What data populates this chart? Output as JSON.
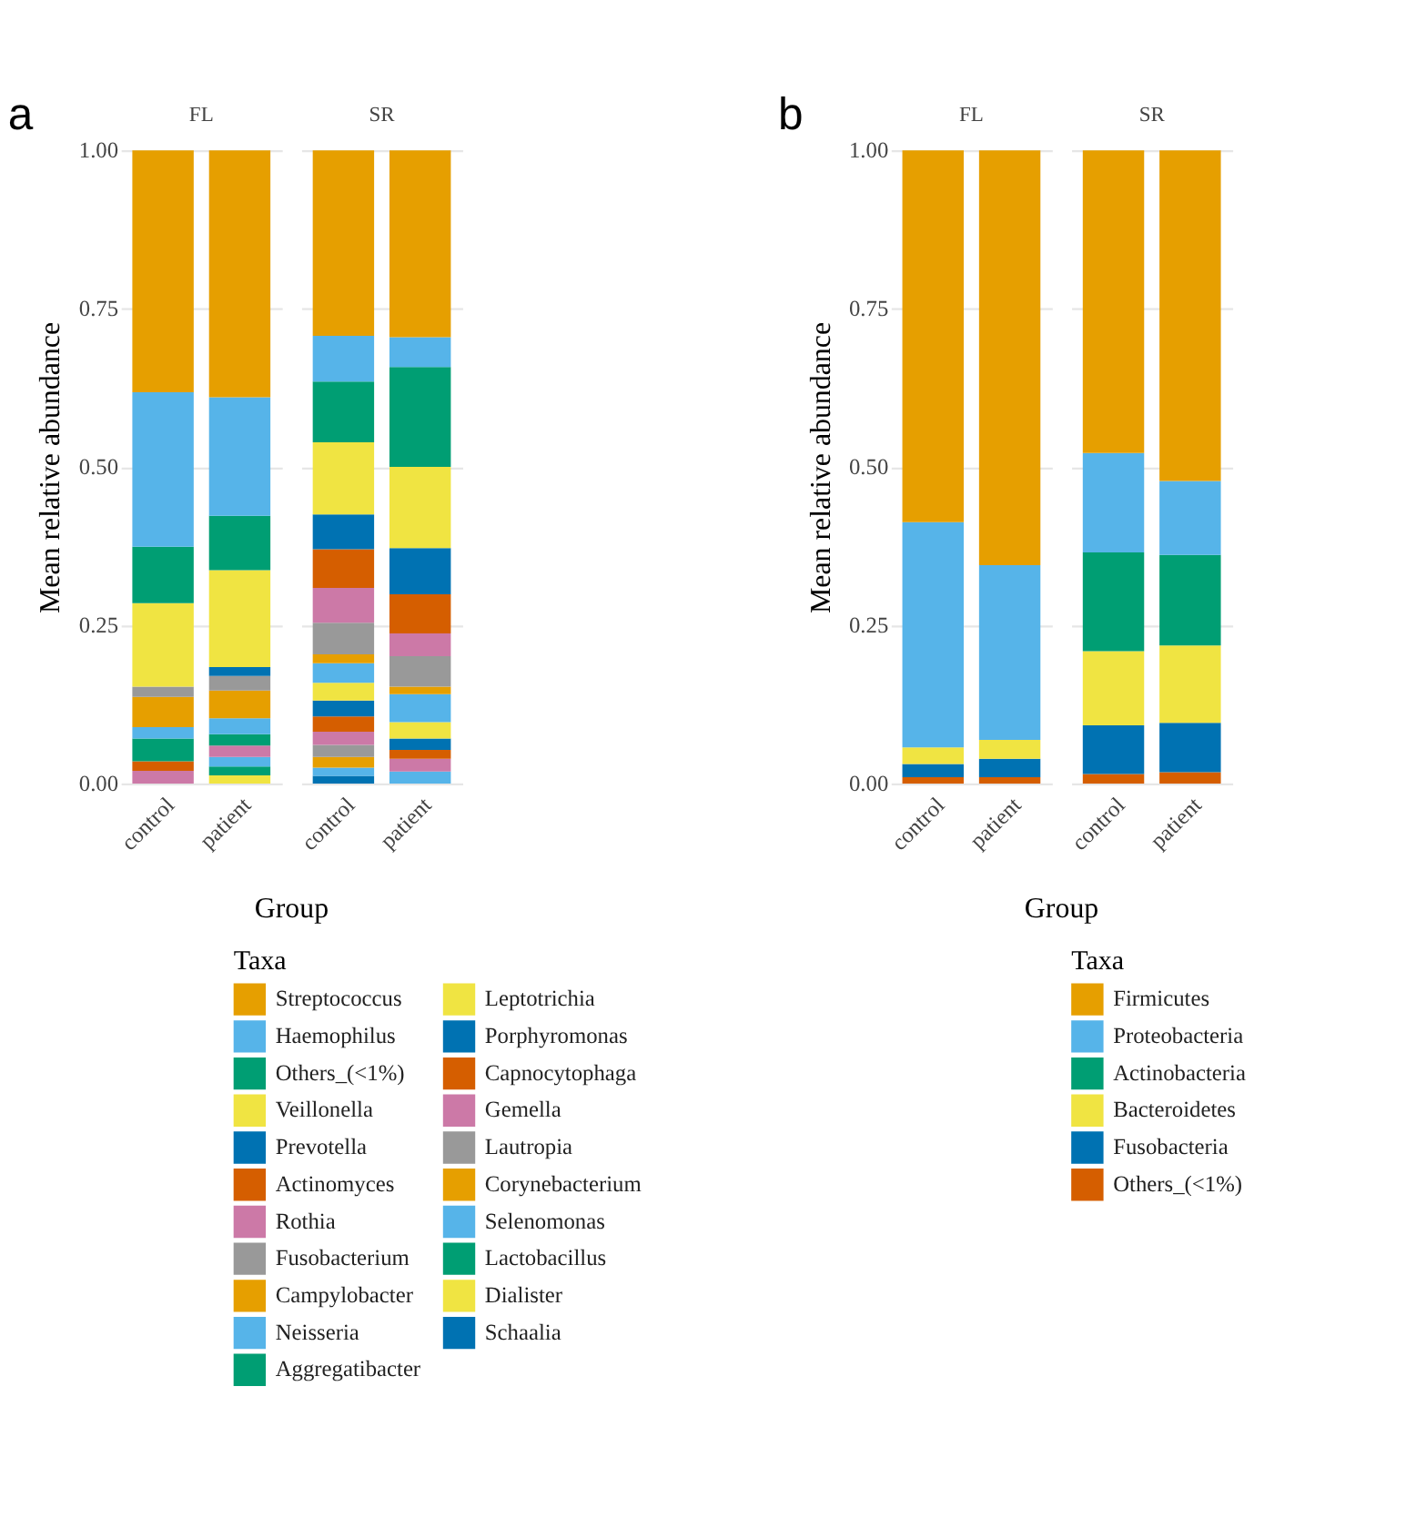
{
  "chart_data": [
    {
      "type": "bar",
      "stacked": true,
      "title": "FL",
      "ylabel": "Mean relative abundance",
      "xlabel": "Group",
      "legend_title": "Taxa",
      "legend": "bottom",
      "annotations": [
        "a"
      ],
      "grid": "y",
      "categories": [
        "control",
        "patient"
      ],
      "ylim": [
        0,
        1
      ],
      "yticks": [
        {
          "value": 0,
          "label": "0.00"
        },
        {
          "value": 0.25,
          "label": "0.25"
        },
        {
          "value": 0.5,
          "label": "0.50"
        },
        {
          "value": 0.75,
          "label": "0.75"
        },
        {
          "value": 1,
          "label": "1.00"
        }
      ],
      "series": [
        {
          "name": "Schaalia",
          "color": "#0072b2",
          "values": [
            0,
            0
          ]
        },
        {
          "name": "Dialister",
          "color": "#f0e442",
          "values": [
            0,
            0.013
          ]
        },
        {
          "name": "Lactobacillus",
          "color": "#009e73",
          "values": [
            0,
            0.014
          ]
        },
        {
          "name": "Selenomonas",
          "color": "#56b4e9",
          "values": [
            0,
            0.015
          ]
        },
        {
          "name": "Corynebacterium",
          "color": "#e69f00",
          "values": [
            0,
            0
          ]
        },
        {
          "name": "Lautropia",
          "color": "#999999",
          "values": [
            0,
            0
          ]
        },
        {
          "name": "Gemella",
          "color": "#cc79a7",
          "values": [
            0.02,
            0.018
          ]
        },
        {
          "name": "Capnocytophaga",
          "color": "#d55e00",
          "values": [
            0.015,
            0
          ]
        },
        {
          "name": "Porphyromonas",
          "color": "#0072b2",
          "values": [
            0,
            0
          ]
        },
        {
          "name": "Leptotrichia",
          "color": "#f0e442",
          "values": [
            0,
            0
          ]
        },
        {
          "name": "Aggregatibacter",
          "color": "#009e73",
          "values": [
            0.036,
            0.018
          ]
        },
        {
          "name": "Neisseria",
          "color": "#56b4e9",
          "values": [
            0.018,
            0.025
          ]
        },
        {
          "name": "Campylobacter",
          "color": "#e69f00",
          "values": [
            0.048,
            0.044
          ]
        },
        {
          "name": "Fusobacterium",
          "color": "#999999",
          "values": [
            0.016,
            0.023
          ]
        },
        {
          "name": "Rothia",
          "color": "#cc79a7",
          "values": [
            0,
            0
          ]
        },
        {
          "name": "Actinomyces",
          "color": "#d55e00",
          "values": [
            0,
            0
          ]
        },
        {
          "name": "Prevotella",
          "color": "#0072b2",
          "values": [
            0,
            0.014
          ]
        },
        {
          "name": "Veillonella",
          "color": "#f0e442",
          "values": [
            0.132,
            0.153
          ]
        },
        {
          "name": "Others_(<1%)",
          "color": "#009e73",
          "values": [
            0.089,
            0.086
          ]
        },
        {
          "name": "Haemophilus",
          "color": "#56b4e9",
          "values": [
            0.244,
            0.187
          ]
        },
        {
          "name": "Streptococcus",
          "color": "#e69f00",
          "values": [
            0.382,
            0.39
          ]
        }
      ]
    },
    {
      "type": "bar",
      "stacked": true,
      "title": "SR",
      "grid": "y",
      "tick_labels": "x",
      "categories": [
        "control",
        "patient"
      ],
      "ylim": [
        0,
        1
      ],
      "yticks": [
        0,
        0.25,
        0.5,
        0.75,
        1
      ],
      "series": [
        {
          "color": "#0072b2",
          "values": [
            0.012,
            0
          ]
        },
        {
          "color": "#f0e442",
          "values": [
            0,
            0
          ]
        },
        {
          "color": "#009e73",
          "values": [
            0,
            0
          ]
        },
        {
          "color": "#56b4e9",
          "values": [
            0.013,
            0.019
          ]
        },
        {
          "color": "#e69f00",
          "values": [
            0.017,
            0
          ]
        },
        {
          "color": "#999999",
          "values": [
            0.019,
            0
          ]
        },
        {
          "color": "#cc79a7",
          "values": [
            0.021,
            0.02
          ]
        },
        {
          "color": "#d55e00",
          "values": [
            0.024,
            0.014
          ]
        },
        {
          "color": "#0072b2",
          "values": [
            0.025,
            0.018
          ]
        },
        {
          "color": "#f0e442",
          "values": [
            0.028,
            0.026
          ]
        },
        {
          "color": "#009e73",
          "values": [
            0,
            0
          ]
        },
        {
          "color": "#56b4e9",
          "values": [
            0.031,
            0.044
          ]
        },
        {
          "color": "#e69f00",
          "values": [
            0.014,
            0.012
          ]
        },
        {
          "color": "#999999",
          "values": [
            0.05,
            0.048
          ]
        },
        {
          "color": "#cc79a7",
          "values": [
            0.055,
            0.036
          ]
        },
        {
          "color": "#d55e00",
          "values": [
            0.061,
            0.062
          ]
        },
        {
          "color": "#0072b2",
          "values": [
            0.055,
            0.073
          ]
        },
        {
          "color": "#f0e442",
          "values": [
            0.114,
            0.128
          ]
        },
        {
          "color": "#009e73",
          "values": [
            0.096,
            0.158
          ]
        },
        {
          "color": "#56b4e9",
          "values": [
            0.072,
            0.047
          ]
        },
        {
          "color": "#e69f00",
          "values": [
            0.293,
            0.295
          ]
        }
      ]
    },
    {
      "type": "bar",
      "stacked": true,
      "title": "FL",
      "ylabel": "Mean relative abundance",
      "xlabel": "Group",
      "legend_title": "Taxa",
      "legend": "bottom",
      "annotations": [
        "b"
      ],
      "grid": "y",
      "categories": [
        "control",
        "patient"
      ],
      "ylim": [
        0,
        1
      ],
      "yticks": [
        {
          "value": 0,
          "label": "0.00"
        },
        {
          "value": 0.25,
          "label": "0.25"
        },
        {
          "value": 0.5,
          "label": "0.50"
        },
        {
          "value": 0.75,
          "label": "0.75"
        },
        {
          "value": 1,
          "label": "1.00"
        }
      ],
      "series": [
        {
          "name": "Others_(<1%)",
          "color": "#d55e00",
          "values": [
            0.01,
            0.01
          ]
        },
        {
          "name": "Fusobacteria",
          "color": "#0072b2",
          "values": [
            0.021,
            0.029
          ]
        },
        {
          "name": "Bacteroidetes",
          "color": "#f0e442",
          "values": [
            0.026,
            0.03
          ]
        },
        {
          "name": "Actinobacteria",
          "color": "#009e73",
          "values": [
            0,
            0
          ]
        },
        {
          "name": "Proteobacteria",
          "color": "#56b4e9",
          "values": [
            0.356,
            0.276
          ]
        },
        {
          "name": "Firmicutes",
          "color": "#e69f00",
          "values": [
            0.587,
            0.655
          ]
        }
      ]
    },
    {
      "type": "bar",
      "stacked": true,
      "title": "SR",
      "grid": "y",
      "tick_labels": "x",
      "categories": [
        "control",
        "patient"
      ],
      "ylim": [
        0,
        1
      ],
      "yticks": [
        0,
        0.25,
        0.5,
        0.75,
        1
      ],
      "series": [
        {
          "color": "#d55e00",
          "values": [
            0.015,
            0.018
          ]
        },
        {
          "color": "#0072b2",
          "values": [
            0.077,
            0.078
          ]
        },
        {
          "color": "#f0e442",
          "values": [
            0.117,
            0.122
          ]
        },
        {
          "color": "#009e73",
          "values": [
            0.156,
            0.143
          ]
        },
        {
          "color": "#56b4e9",
          "values": [
            0.157,
            0.117
          ]
        },
        {
          "color": "#e69f00",
          "values": [
            0.478,
            0.522
          ]
        }
      ]
    }
  ]
}
